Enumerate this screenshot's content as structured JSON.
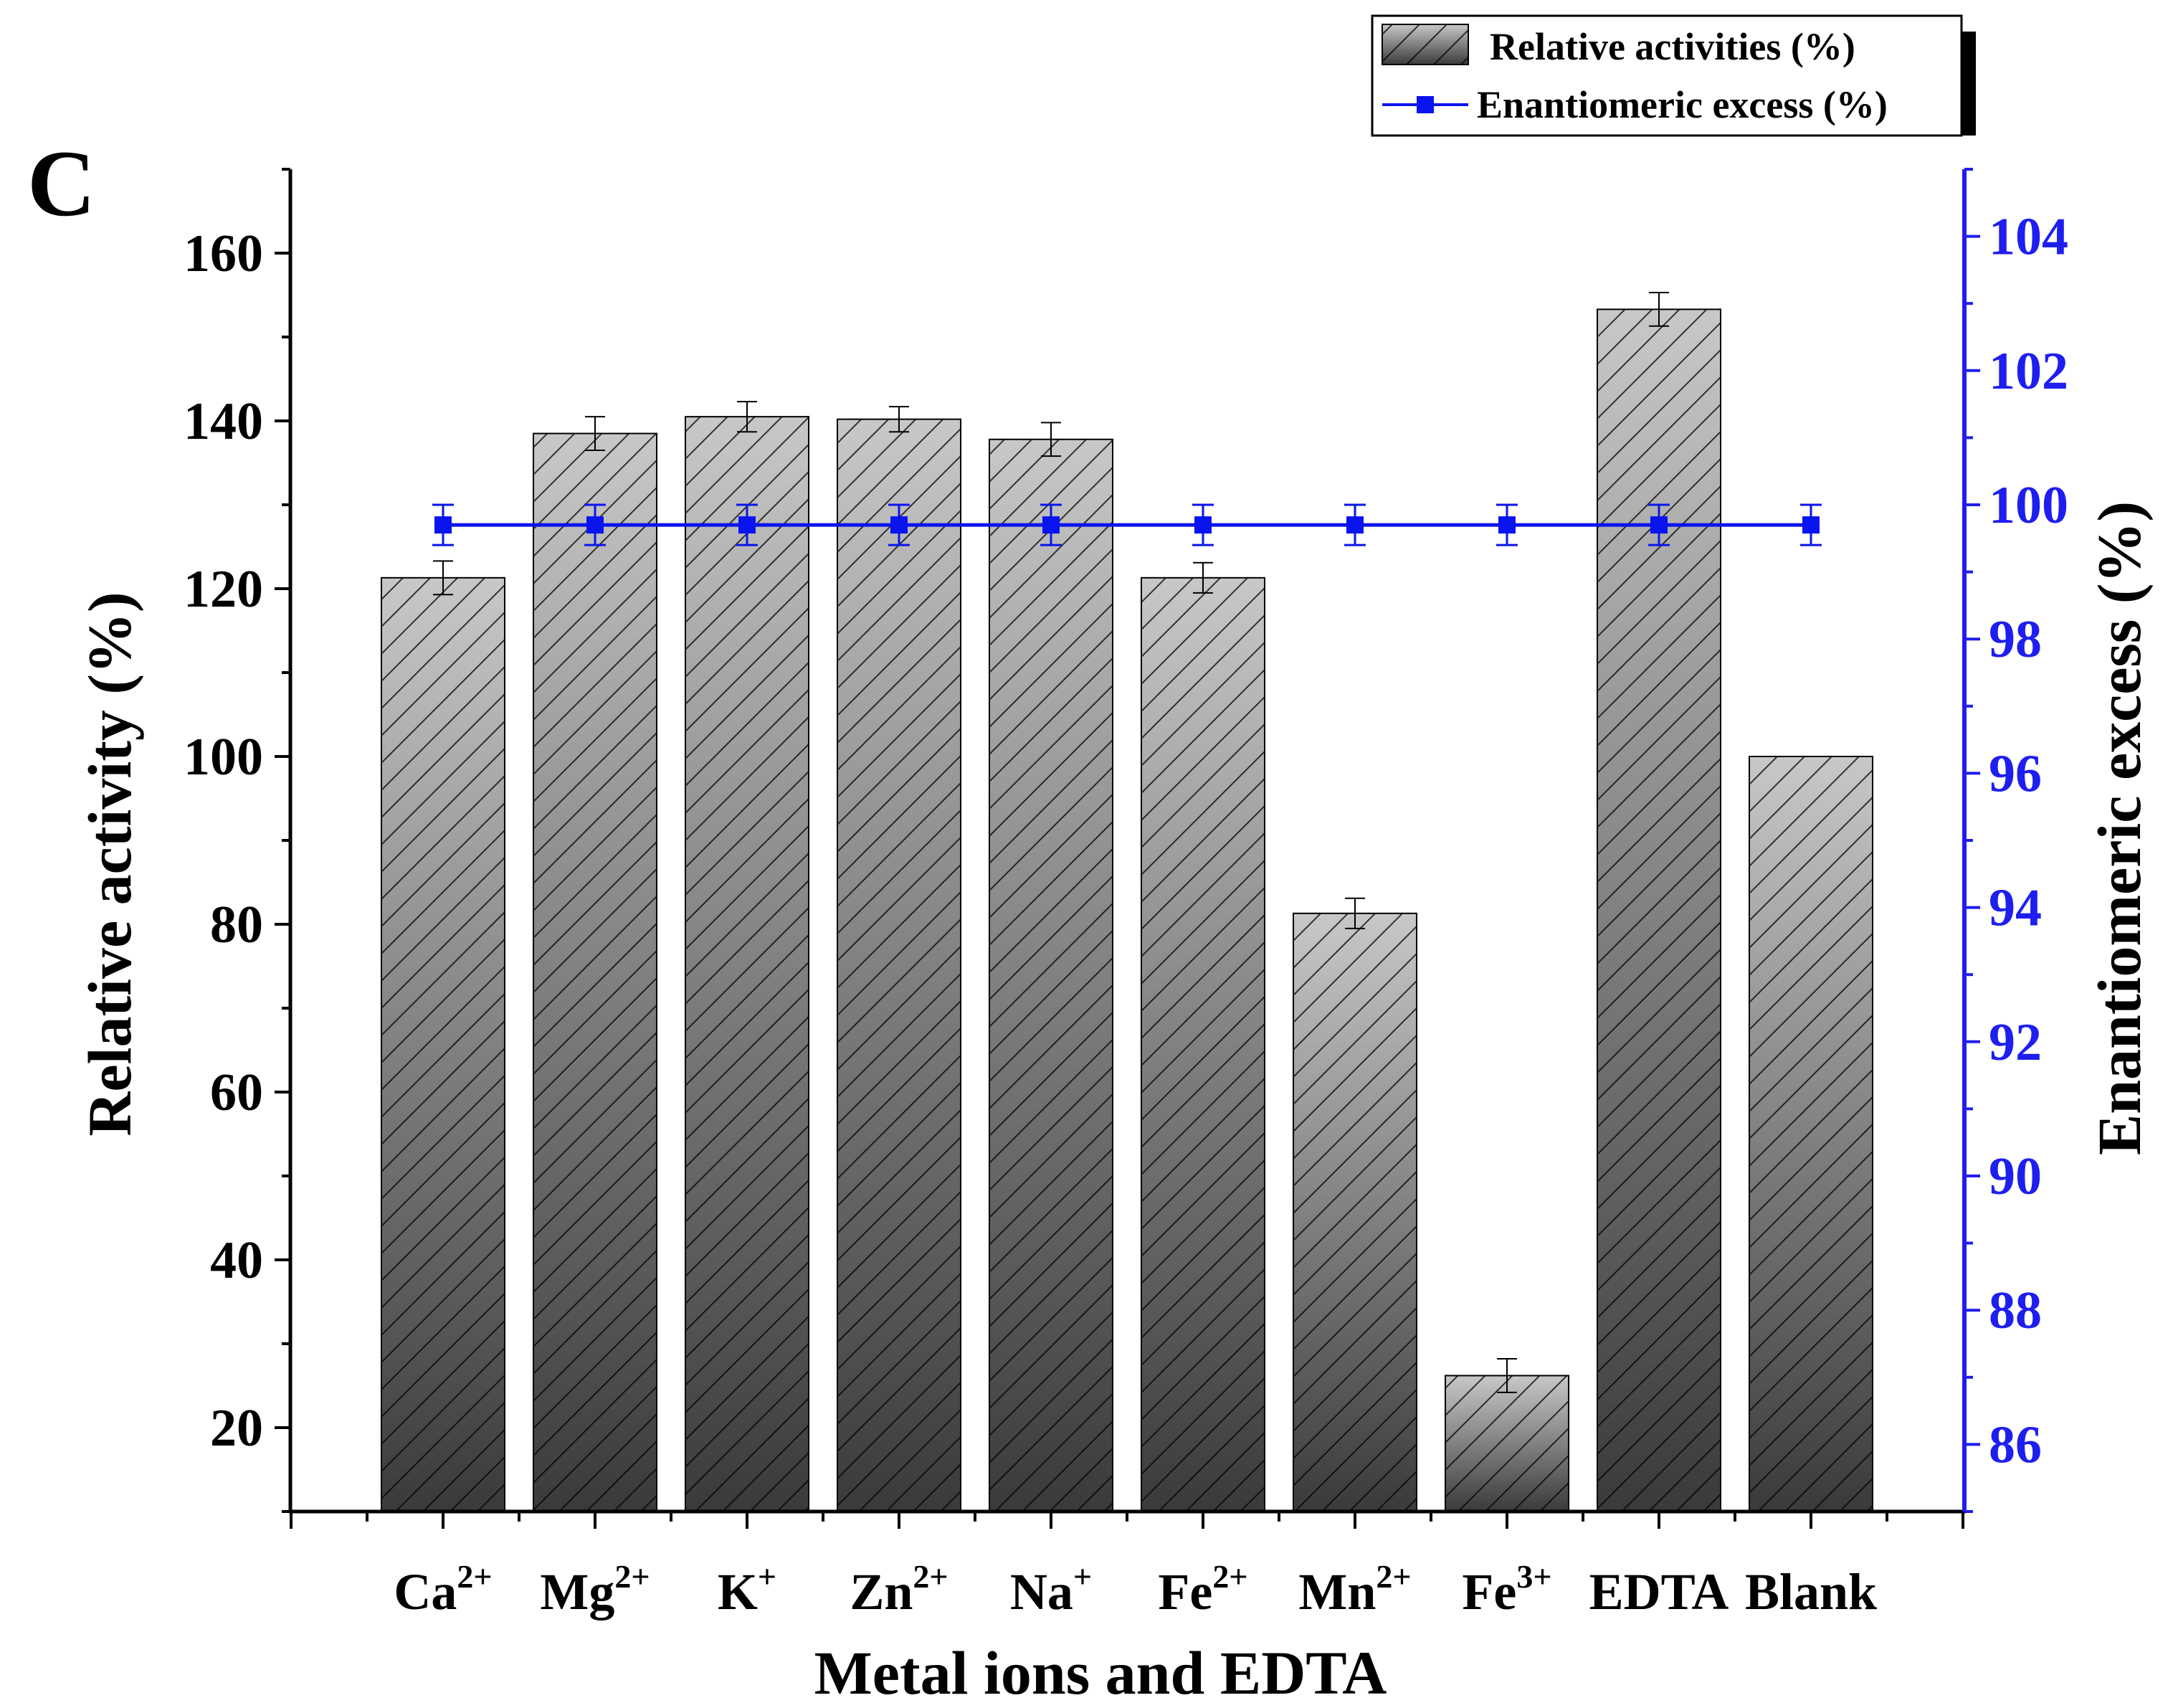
{
  "panel_label": "C",
  "colors": {
    "bar_dark": "#3a3a3a",
    "bar_light": "#c8c8c8",
    "line": "#0a14ee",
    "axis": "#000000",
    "right_axis": "#1e1ef0"
  },
  "legend": {
    "bar_label": "Relative activities (%)",
    "line_label": "Enantiomeric excess (%)",
    "position": "top-right"
  },
  "chart_data": {
    "type": "bar+line",
    "title": "",
    "xlabel": "Metal ions and EDTA",
    "ylabel": "Relative activity (%)",
    "y2label": "Enantiomeric excess (%)",
    "categories": [
      {
        "base": "Ca",
        "sup": "2+"
      },
      {
        "base": "Mg",
        "sup": "2+"
      },
      {
        "base": "K",
        "sup": "+"
      },
      {
        "base": "Zn",
        "sup": "2+"
      },
      {
        "base": "Na",
        "sup": "+"
      },
      {
        "base": "Fe",
        "sup": "2+"
      },
      {
        "base": "Mn",
        "sup": "2+"
      },
      {
        "base": "Fe",
        "sup": "3+"
      },
      {
        "base": "EDTA",
        "sup": ""
      },
      {
        "base": "Blank",
        "sup": ""
      }
    ],
    "ylim": [
      10,
      170
    ],
    "yticks": [
      20,
      40,
      60,
      80,
      100,
      120,
      140,
      160
    ],
    "y2lim": [
      85,
      105
    ],
    "y2ticks": [
      86,
      88,
      90,
      92,
      94,
      96,
      98,
      100,
      102,
      104
    ],
    "series": [
      {
        "name": "Relative activities (%)",
        "type": "bar",
        "axis": "left",
        "values": [
          121.3,
          138.5,
          140.5,
          140.2,
          137.8,
          121.3,
          81.3,
          26.2,
          153.3,
          100.0
        ],
        "errors": [
          2.0,
          2.0,
          1.8,
          1.5,
          2.0,
          1.8,
          1.8,
          2.0,
          2.0,
          0
        ]
      },
      {
        "name": "Enantiomeric excess (%)",
        "type": "line",
        "axis": "right",
        "values": [
          99.7,
          99.7,
          99.7,
          99.7,
          99.7,
          99.7,
          99.7,
          99.7,
          99.7,
          99.7
        ],
        "errors": [
          0.3,
          0.3,
          0.3,
          0.3,
          0.3,
          0.3,
          0.3,
          0.3,
          0.3,
          0.3
        ]
      }
    ]
  }
}
